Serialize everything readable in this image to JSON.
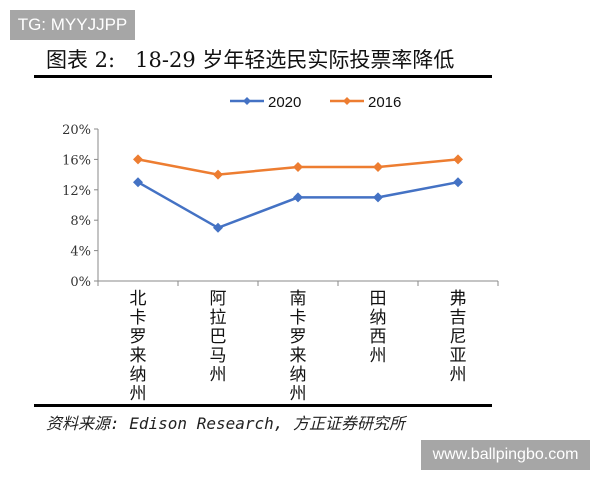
{
  "watermark_top": "TG: MYYJJPP",
  "watermark_bottom": "www.ballpingbo.com",
  "figure_title": "图表 2:   18-29 岁年轻选民实际投票率降低",
  "source": "资料来源: Edison Research, 方正证券研究所",
  "chart_data": {
    "type": "line",
    "title": "18-29 岁年轻选民实际投票率降低",
    "categories": [
      "北卡罗来纳州",
      "阿拉巴马州",
      "南卡罗来纳州",
      "田纳西州",
      "弗吉尼亚州"
    ],
    "series": [
      {
        "name": "2020",
        "values": [
          13,
          7,
          11,
          11,
          13
        ],
        "color": "#4472c4"
      },
      {
        "name": "2016",
        "values": [
          16,
          14,
          15,
          15,
          16
        ],
        "color": "#ed7d31"
      }
    ],
    "ylim": [
      0,
      20
    ],
    "yticks": [
      "0%",
      "4%",
      "8%",
      "12%",
      "16%",
      "20%"
    ],
    "ytick_values": [
      0,
      4,
      8,
      12,
      16,
      20
    ],
    "legend": "top",
    "grid": false,
    "xlabel": "",
    "ylabel": ""
  }
}
